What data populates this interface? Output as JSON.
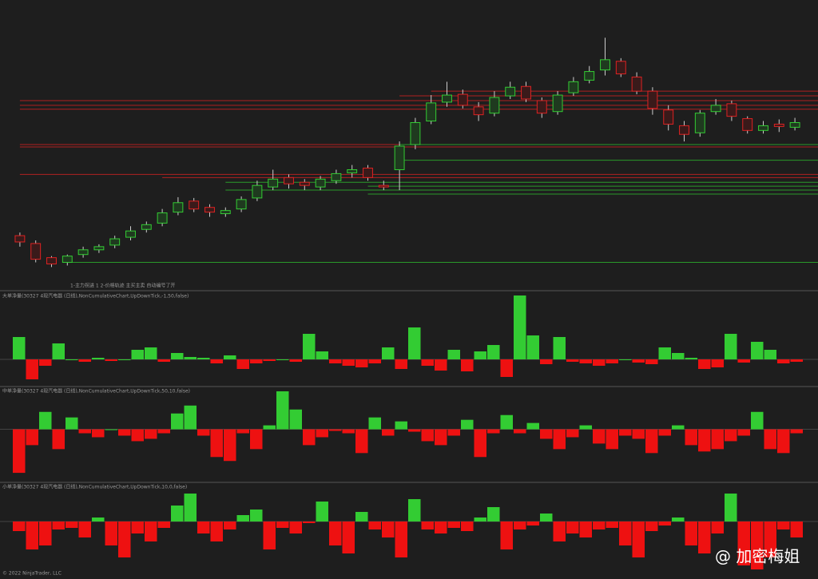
{
  "chart_data": [
    {
      "type": "candlestick",
      "title": "1-主力拐进 1 2-价格轨迹 主买主卖 自动编号了开",
      "ylim": [
        0,
        362
      ],
      "up_color": "#33cc33",
      "down_color": "#dd2222",
      "open": [
        66,
        56,
        38,
        32,
        42,
        48,
        54,
        64,
        74,
        82,
        96,
        110,
        102,
        94,
        100,
        114,
        128,
        140,
        134,
        128,
        136,
        146,
        152,
        130,
        150,
        182,
        212,
        236,
        246,
        230,
        222,
        244,
        256,
        238,
        224,
        248,
        264,
        277,
        288,
        268,
        250,
        226,
        206,
        197,
        224,
        234,
        215,
        200,
        208,
        204
      ],
      "high": [
        70,
        60,
        40,
        42,
        52,
        55,
        66,
        78,
        84,
        100,
        115,
        114,
        106,
        102,
        116,
        136,
        150,
        144,
        138,
        142,
        150,
        156,
        156,
        136,
        186,
        216,
        245,
        262,
        252,
        236,
        250,
        262,
        262,
        242,
        250,
        268,
        282,
        318,
        292,
        274,
        255,
        232,
        212,
        226,
        240,
        238,
        218,
        212,
        214,
        216
      ],
      "low": [
        52,
        32,
        26,
        28,
        38,
        44,
        50,
        60,
        70,
        78,
        92,
        96,
        90,
        90,
        96,
        110,
        124,
        126,
        124,
        124,
        132,
        140,
        136,
        124,
        124,
        176,
        208,
        230,
        228,
        212,
        218,
        240,
        236,
        216,
        220,
        244,
        260,
        270,
        268,
        246,
        220,
        200,
        186,
        192,
        220,
        212,
        196,
        196,
        198,
        200
      ],
      "close": [
        58,
        36,
        30,
        40,
        48,
        52,
        62,
        72,
        80,
        95,
        108,
        100,
        96,
        98,
        112,
        130,
        138,
        132,
        130,
        138,
        145,
        150,
        140,
        128,
        180,
        210,
        235,
        245,
        232,
        220,
        242,
        255,
        240,
        222,
        245,
        262,
        275,
        290,
        272,
        250,
        228,
        208,
        195,
        222,
        232,
        218,
        200,
        206,
        205,
        210
      ],
      "levels": [
        {
          "value": 250,
          "start": 26,
          "color": "#b02020"
        },
        {
          "value": 244,
          "start": 24,
          "color": "#b02020"
        },
        {
          "value": 238,
          "start": 0,
          "color": "#b02020"
        },
        {
          "value": 232,
          "start": 0,
          "color": "#b02020"
        },
        {
          "value": 227,
          "start": 0,
          "color": "#b02020"
        },
        {
          "value": 182,
          "start": 0,
          "color": "#b02020"
        },
        {
          "value": 179,
          "start": 0,
          "color": "#b02020"
        },
        {
          "value": 144,
          "start": 0,
          "color": "#b02020"
        },
        {
          "value": 140,
          "start": 9,
          "color": "#b02020"
        },
        {
          "value": 182,
          "start": 24,
          "color": "#2a9a2a"
        },
        {
          "value": 162,
          "start": 24,
          "color": "#2a9a2a"
        },
        {
          "value": 134,
          "start": 13,
          "color": "#2a9a2a"
        },
        {
          "value": 129,
          "start": 22,
          "color": "#2a9a2a"
        },
        {
          "value": 124,
          "start": 13,
          "color": "#2a9a2a"
        },
        {
          "value": 119,
          "start": 22,
          "color": "#2a9a2a"
        },
        {
          "value": 32,
          "start": 3,
          "color": "#2a9a2a"
        }
      ]
    },
    {
      "type": "histogram",
      "title": "大单净量(30327 4现汽电器 (日线),NonCumulativeChart,UpDownTick,-1,50,false)",
      "ylim": [
        -32,
        82
      ],
      "up_color": "#33cc33",
      "down_color": "#ee1111",
      "values": [
        28,
        -25,
        -8,
        20,
        0,
        -3,
        2,
        -2,
        0,
        12,
        15,
        -3,
        8,
        3,
        2,
        -5,
        5,
        -12,
        -5,
        -2,
        0,
        -3,
        32,
        10,
        -5,
        -8,
        -10,
        -5,
        15,
        -12,
        40,
        -8,
        -14,
        12,
        -15,
        10,
        18,
        -22,
        80,
        30,
        -6,
        28,
        -3,
        -5,
        -8,
        -5,
        0,
        -4,
        -6,
        15,
        8,
        2,
        -12,
        -10,
        32,
        -4,
        22,
        12,
        -5,
        -3
      ]
    },
    {
      "type": "histogram",
      "title": "中单净量(30327 4现汽电器 (日线),NonCumulativeChart,UpDownTick,50,10,false)",
      "ylim": [
        -65,
        51
      ],
      "up_color": "#33cc33",
      "down_color": "#ee1111",
      "values": [
        -55,
        -20,
        22,
        -25,
        15,
        -5,
        -10,
        0,
        -8,
        -15,
        -12,
        -5,
        20,
        30,
        -8,
        -35,
        -40,
        -5,
        -25,
        5,
        48,
        25,
        -20,
        -10,
        -2,
        -5,
        -30,
        15,
        -8,
        10,
        -3,
        -15,
        -20,
        -8,
        12,
        -35,
        -5,
        18,
        -5,
        8,
        -12,
        -25,
        -10,
        5,
        -18,
        -25,
        -8,
        -12,
        -30,
        -8,
        5,
        -20,
        -28,
        -25,
        -15,
        -8,
        22,
        -25,
        -30,
        -5
      ]
    },
    {
      "type": "histogram",
      "title": "小单净量(30327 4现汽电器 (日线),NonCumulativeChart,UpDownTick,10,0,false)",
      "ylim": [
        -67,
        46
      ],
      "up_color": "#33cc33",
      "down_color": "#ee1111",
      "values": [
        -12,
        -35,
        -30,
        -10,
        -8,
        -20,
        5,
        -30,
        -45,
        -15,
        -25,
        -8,
        20,
        35,
        -15,
        -25,
        -10,
        8,
        15,
        -35,
        -8,
        -15,
        -2,
        25,
        -30,
        -40,
        12,
        -10,
        -20,
        -45,
        28,
        -10,
        -15,
        -8,
        -12,
        5,
        18,
        -35,
        -10,
        -5,
        10,
        -25,
        -15,
        -20,
        -10,
        -8,
        -30,
        -45,
        -12,
        -5,
        5,
        -30,
        -40,
        -15,
        35,
        -55,
        -60,
        -45,
        -10,
        -20
      ]
    }
  ],
  "footer": "© 2022 NinjaTrader, LLC",
  "watermark": "@ 加密梅姐"
}
